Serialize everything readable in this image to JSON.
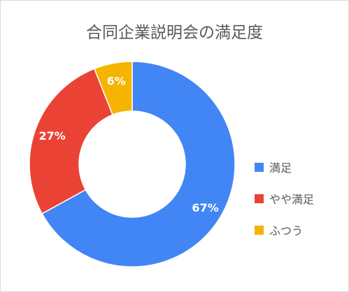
{
  "chart_data": {
    "type": "pie",
    "title": "合同企業説明会の満足度",
    "labels": [
      "満足",
      "やや満足",
      "ふつう"
    ],
    "values": [
      67,
      27,
      6
    ],
    "value_labels": [
      "67%",
      "27%",
      "6%"
    ],
    "colors": [
      "#4285f4",
      "#ea4335",
      "#f4b400"
    ],
    "donut": true,
    "legend_position": "right"
  }
}
